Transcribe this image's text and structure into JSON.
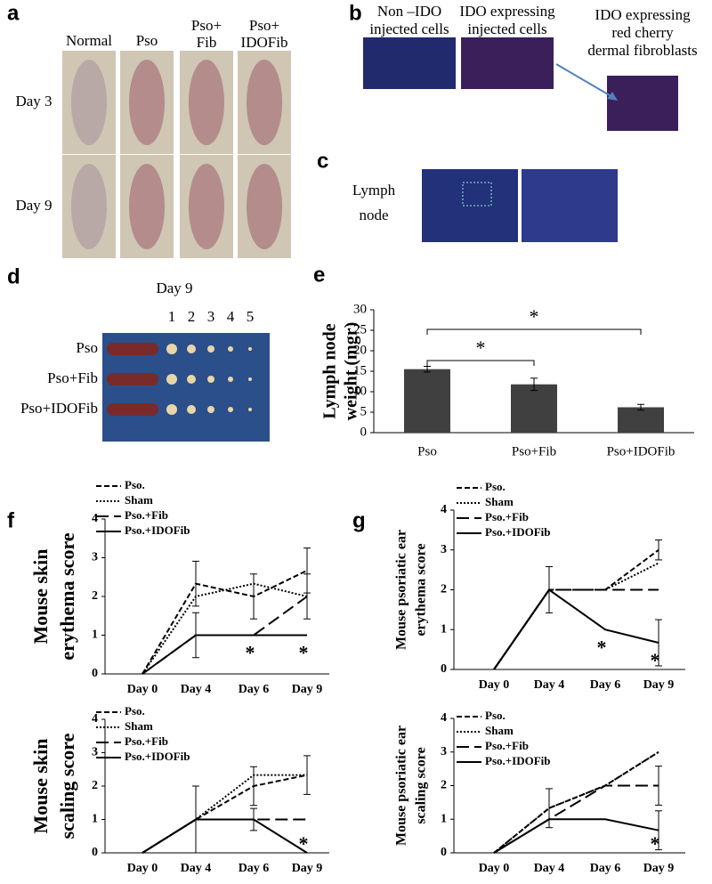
{
  "panel_labels": [
    "a",
    "b",
    "c",
    "d",
    "e",
    "f",
    "g"
  ],
  "panel_a": {
    "columns": [
      [
        "Normal"
      ],
      [
        "Pso"
      ],
      [
        "Pso+",
        "Fib"
      ],
      [
        "Pso+",
        "IDOFib"
      ]
    ],
    "rows": [
      "Day 3",
      "Day 9"
    ]
  },
  "panel_b": {
    "captions": [
      [
        "Non –IDO",
        "injected cells"
      ],
      [
        "IDO expressing",
        "injected cells"
      ],
      [
        "IDO expressing",
        "red cherry",
        "dermal fibroblasts"
      ]
    ]
  },
  "panel_c": {
    "caption": [
      "Lymph",
      "node"
    ]
  },
  "panel_d": {
    "title": "Day 9",
    "columns": [
      "1",
      "2",
      "3",
      "4",
      "5"
    ],
    "rows": [
      "Pso",
      "Pso+Fib",
      "Pso+IDOFib"
    ]
  },
  "chart_data": [
    {
      "type": "bar",
      "ylabel": [
        "Lymph node",
        "weight (mgr)"
      ],
      "categories": [
        "Pso",
        "Pso+Fib",
        "Pso+IDOFib"
      ],
      "values": [
        15.5,
        11.8,
        6.2
      ],
      "errors": [
        0.7,
        1.5,
        0.7
      ],
      "color": "#404040",
      "ylim": [
        0,
        30
      ],
      "yticks": [
        0,
        5,
        10,
        15,
        20,
        25,
        30
      ],
      "comparisons": [
        {
          "from": "Pso",
          "to": "Pso+Fib",
          "label": "*"
        },
        {
          "from": "Pso",
          "to": "Pso+IDOFib",
          "label": "*"
        }
      ]
    },
    {
      "type": "line",
      "ylabel": [
        "Mouse skin",
        "erythema score"
      ],
      "categories": [
        "Day 0",
        "Day 4",
        "Day 6",
        "Day 9"
      ],
      "ylim": [
        0,
        4
      ],
      "yticks": [
        0,
        1,
        2,
        3,
        4
      ],
      "significance": [
        null,
        null,
        "*",
        "*"
      ],
      "series": [
        {
          "name": "Pso.",
          "color": "#000000",
          "dash": "dashed",
          "values": [
            0,
            2.33,
            2,
            2.67
          ],
          "errors": [
            null,
            0.58,
            0.58,
            0.58
          ]
        },
        {
          "name": "Sham",
          "color": "#000000",
          "dash": "dotted",
          "values": [
            0,
            2,
            2.33,
            2
          ],
          "errors": [
            null,
            null,
            null,
            null
          ]
        },
        {
          "name": "Pso.+Fib",
          "color": "#000000",
          "dash": "longdash",
          "values": [
            0,
            1,
            1,
            2
          ],
          "errors": [
            null,
            null,
            null,
            0.58
          ]
        },
        {
          "name": "Pso.+IDOFib",
          "color": "#000000",
          "dash": "solid",
          "values": [
            0,
            1,
            1,
            1
          ],
          "errors": [
            null,
            0.58,
            null,
            null
          ]
        }
      ]
    },
    {
      "type": "line",
      "ylabel": [
        "Mouse skin",
        "scaling score"
      ],
      "categories": [
        "Day 0",
        "Day 4",
        "Day 6",
        "Day 9"
      ],
      "ylim": [
        0,
        4
      ],
      "yticks": [
        0,
        1,
        2,
        3,
        4
      ],
      "significance": [
        null,
        null,
        null,
        "*"
      ],
      "series": [
        {
          "name": "Pso.",
          "color": "#000000",
          "dash": "dashed",
          "values": [
            0,
            1,
            2,
            2.33
          ],
          "errors": [
            null,
            1,
            0.58,
            null
          ]
        },
        {
          "name": "Sham",
          "color": "#000000",
          "dash": "dotted",
          "values": [
            0,
            1,
            2.33,
            2.33
          ],
          "errors": [
            null,
            null,
            null,
            0.58
          ]
        },
        {
          "name": "Pso.+Fib",
          "color": "#000000",
          "dash": "longdash",
          "values": [
            0,
            1,
            1,
            1
          ],
          "errors": [
            null,
            null,
            0.33,
            null
          ]
        },
        {
          "name": "Pso.+IDOFib",
          "color": "#000000",
          "dash": "solid",
          "values": [
            0,
            1,
            1,
            0
          ],
          "errors": [
            null,
            null,
            null,
            null
          ]
        }
      ]
    },
    {
      "type": "line",
      "ylabel": [
        "Mouse psoriatic ear",
        "erythema score"
      ],
      "categories": [
        "Day 0",
        "Day 4",
        "Day 6",
        "Day 9"
      ],
      "ylim": [
        0,
        4
      ],
      "yticks": [
        0,
        1,
        2,
        3,
        4
      ],
      "significance": [
        null,
        null,
        "*",
        "*"
      ],
      "series": [
        {
          "name": "Pso.",
          "color": "#000000",
          "dash": "dashed",
          "values": [
            0,
            2,
            2,
            3
          ],
          "errors": [
            null,
            null,
            null,
            0.25
          ]
        },
        {
          "name": "Sham",
          "color": "#000000",
          "dash": "dotted",
          "values": [
            0,
            2,
            2,
            2.67
          ],
          "errors": [
            null,
            null,
            null,
            null
          ]
        },
        {
          "name": "Pso.+Fib",
          "color": "#000000",
          "dash": "longdash",
          "values": [
            0,
            2,
            2,
            2
          ],
          "errors": [
            null,
            null,
            null,
            null
          ]
        },
        {
          "name": "Pso.+IDOFib",
          "color": "#000000",
          "dash": "solid",
          "values": [
            0,
            2,
            1,
            0.67
          ],
          "errors": [
            null,
            0.58,
            null,
            0.58
          ]
        }
      ]
    },
    {
      "type": "line",
      "ylabel": [
        "Mouse psoriatic ear",
        "scaling score"
      ],
      "categories": [
        "Day 0",
        "Day 4",
        "Day 6",
        "Day 9"
      ],
      "ylim": [
        0,
        4
      ],
      "yticks": [
        0,
        1,
        2,
        3,
        4
      ],
      "significance": [
        null,
        null,
        null,
        "*"
      ],
      "series": [
        {
          "name": "Pso.",
          "color": "#000000",
          "dash": "dashed",
          "values": [
            0,
            1.33,
            2,
            3
          ],
          "errors": [
            null,
            0.58,
            null,
            null
          ]
        },
        {
          "name": "Sham",
          "color": "#000000",
          "dash": "dotted",
          "values": [
            0,
            1.33,
            2,
            3
          ],
          "errors": [
            null,
            null,
            null,
            null
          ]
        },
        {
          "name": "Pso.+Fib",
          "color": "#000000",
          "dash": "longdash",
          "values": [
            0,
            1,
            2,
            2
          ],
          "errors": [
            null,
            null,
            null,
            0.58
          ]
        },
        {
          "name": "Pso.+IDOFib",
          "color": "#000000",
          "dash": "solid",
          "values": [
            0,
            1,
            1,
            0.67
          ],
          "errors": [
            null,
            null,
            null,
            0.58
          ]
        }
      ]
    }
  ]
}
